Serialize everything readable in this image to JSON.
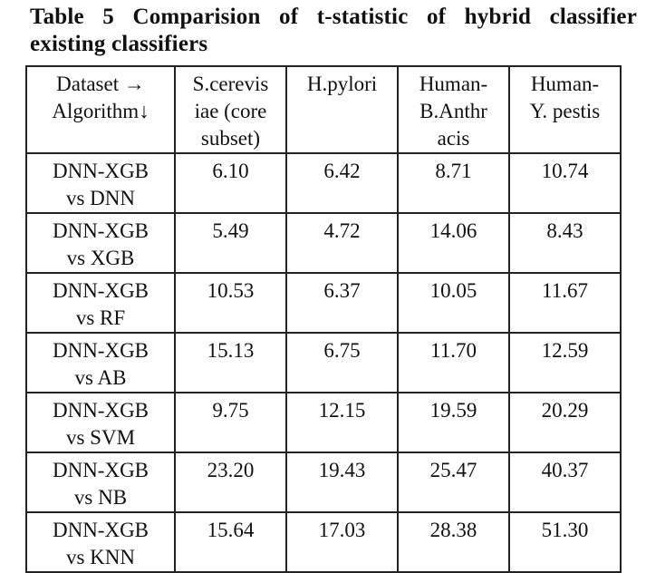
{
  "caption": {
    "line1": "Table 5 Comparision of t-statistic of hybrid classifier",
    "line2": "existing classifiers"
  },
  "table": {
    "columns": [
      {
        "label": "Dataset →\nAlgorithm↓"
      },
      {
        "label": "S.cerevis\niae (core\nsubset)"
      },
      {
        "label": "H.pylori"
      },
      {
        "label": "Human-\nB.Anthr\nacis"
      },
      {
        "label": "Human-\nY. pestis"
      }
    ],
    "rows": [
      {
        "algorithm": "DNN-XGB\nvs DNN",
        "values": [
          "6.10",
          "6.42",
          "8.71",
          "10.74"
        ]
      },
      {
        "algorithm": "DNN-XGB\nvs XGB",
        "values": [
          "5.49",
          "4.72",
          "14.06",
          "8.43"
        ]
      },
      {
        "algorithm": "DNN-XGB\nvs RF",
        "values": [
          "10.53",
          "6.37",
          "10.05",
          "11.67"
        ]
      },
      {
        "algorithm": "DNN-XGB\nvs AB",
        "values": [
          "15.13",
          "6.75",
          "11.70",
          "12.59"
        ]
      },
      {
        "algorithm": "DNN-XGB\nvs SVM",
        "values": [
          "9.75",
          "12.15",
          "19.59",
          "20.29"
        ]
      },
      {
        "algorithm": "DNN-XGB\nvs NB",
        "values": [
          "23.20",
          "19.43",
          "25.47",
          "40.37"
        ]
      },
      {
        "algorithm": "DNN-XGB\nvs KNN",
        "values": [
          "15.64",
          "17.03",
          "28.38",
          "51.30"
        ]
      }
    ]
  },
  "colors": {
    "text": "#111111",
    "border": "#222222",
    "background": "#ffffff"
  }
}
